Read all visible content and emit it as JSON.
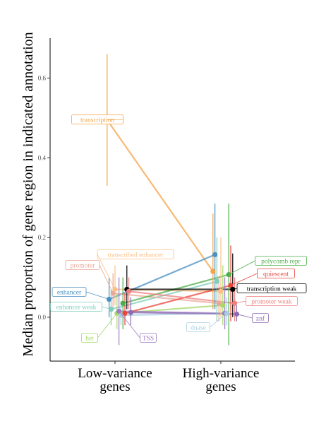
{
  "chart_data": {
    "type": "line",
    "ylabel": "Median proportion of gene region in indicated annotation",
    "xlabel": "",
    "categories": [
      "Low-variance genes",
      "High-variance genes"
    ],
    "category_lines": [
      [
        "Low-variance",
        "genes"
      ],
      [
        "High-variance",
        "genes"
      ]
    ],
    "ylim": [
      -0.11,
      0.7
    ],
    "yticks": [
      0.0,
      0.2,
      0.4,
      0.6
    ],
    "ytick_labels": [
      "0.0",
      "0.2",
      "0.4",
      "0.6"
    ],
    "grid": false,
    "legend": "none (direct labels)",
    "series": [
      {
        "name": "transcription",
        "color": "#f4a347",
        "values": [
          0.495,
          0.115
        ],
        "low_ci": [
          0.33,
          0.02
        ],
        "high_ci": [
          0.66,
          0.26
        ],
        "label_side": "left"
      },
      {
        "name": "enhancer",
        "color": "#4a90c2",
        "values": [
          0.045,
          0.157
        ],
        "low_ci": [
          0.0,
          0.02
        ],
        "high_ci": [
          0.1,
          0.285
        ],
        "label_side": "left"
      },
      {
        "name": "enhancer weak",
        "color": "#7fcdbb",
        "values": [
          0.02,
          0.09
        ],
        "low_ci": [
          -0.02,
          -0.01
        ],
        "high_ci": [
          0.07,
          0.2
        ],
        "label_side": "left"
      },
      {
        "name": "promoter",
        "color": "#e9a99a",
        "values": [
          0.06,
          0.035
        ],
        "low_ci": [
          0.02,
          -0.01
        ],
        "high_ci": [
          0.11,
          0.1
        ],
        "label_side": "left"
      },
      {
        "name": "transcribed enhancer",
        "color": "#fdc086",
        "values": [
          0.07,
          0.065
        ],
        "low_ci": [
          0.03,
          0.0
        ],
        "high_ci": [
          0.13,
          0.2
        ],
        "label_side": "left"
      },
      {
        "name": "het",
        "color": "#a6d96a",
        "values": [
          0.01,
          0.03
        ],
        "low_ci": [
          -0.03,
          -0.02
        ],
        "high_ci": [
          0.06,
          0.13
        ],
        "label_side": "left"
      },
      {
        "name": "TSS",
        "color": "#9e7cc1",
        "values": [
          0.015,
          0.01
        ],
        "low_ci": [
          -0.07,
          -0.03
        ],
        "high_ci": [
          0.1,
          0.1
        ],
        "label_side": "left"
      },
      {
        "name": "dnase",
        "color": "#a6cee3",
        "values": [
          0.005,
          0.01
        ],
        "low_ci": [
          -0.02,
          -0.02
        ],
        "high_ci": [
          0.04,
          0.05
        ],
        "label_side": "right"
      },
      {
        "name": "polycomb repr",
        "color": "#4daf4a",
        "values": [
          0.035,
          0.107
        ],
        "low_ci": [
          -0.03,
          -0.07
        ],
        "high_ci": [
          0.1,
          0.285
        ],
        "label_side": "right"
      },
      {
        "name": "quiescent",
        "color": "#e8463c",
        "values": [
          0.01,
          0.08
        ],
        "low_ci": [
          -0.02,
          -0.01
        ],
        "high_ci": [
          0.06,
          0.18
        ],
        "label_side": "right"
      },
      {
        "name": "transcription weak",
        "color": "#000000",
        "values": [
          0.07,
          0.07
        ],
        "low_ci": [
          0.02,
          0.0
        ],
        "high_ci": [
          0.13,
          0.16
        ],
        "label_side": "right"
      },
      {
        "name": "promoter weak",
        "color": "#f08080",
        "values": [
          0.065,
          0.035
        ],
        "low_ci": [
          0.02,
          -0.01
        ],
        "high_ci": [
          0.1,
          0.1
        ],
        "label_side": "right"
      },
      {
        "name": "znf",
        "color": "#8c6bb1",
        "values": [
          0.012,
          0.008
        ],
        "low_ci": [
          -0.02,
          -0.01
        ],
        "high_ci": [
          0.05,
          0.03
        ],
        "label_side": "right"
      }
    ]
  }
}
